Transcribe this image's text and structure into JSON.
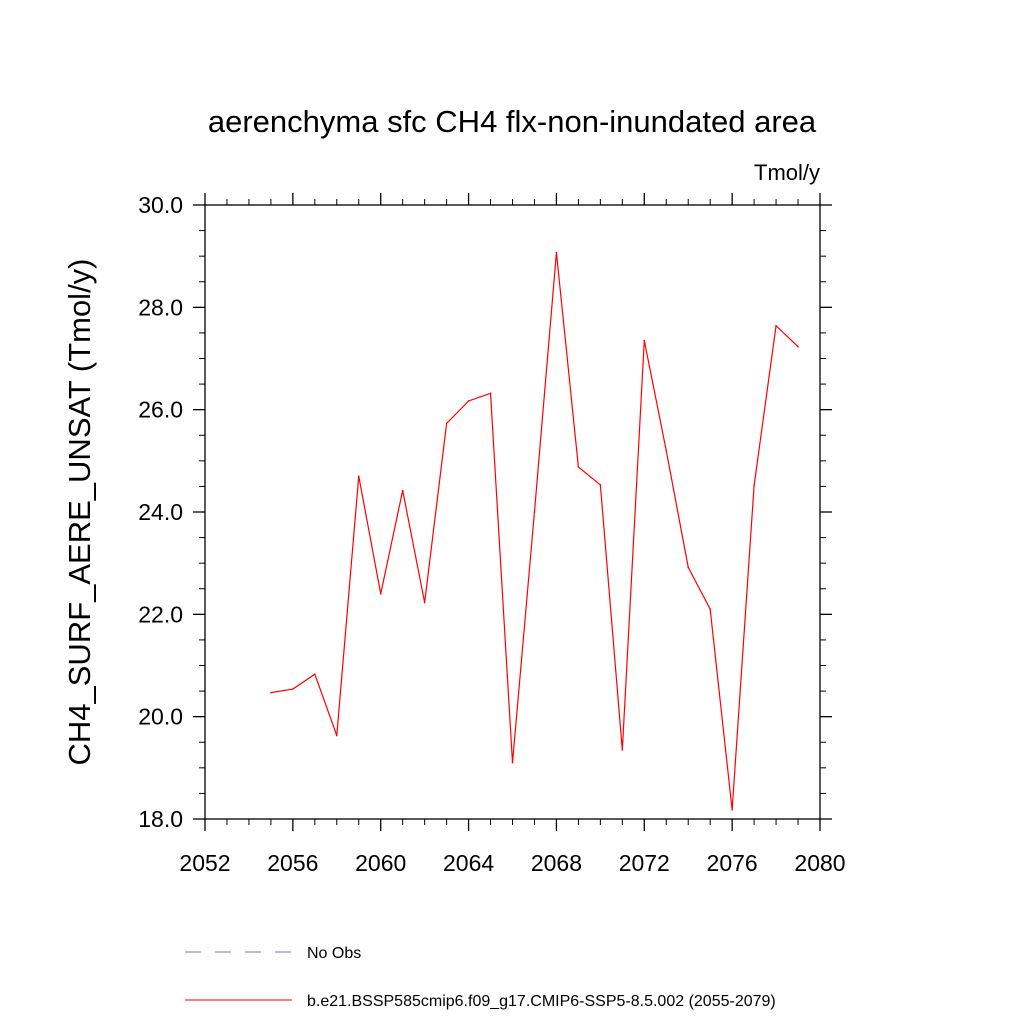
{
  "chart_data": {
    "type": "line",
    "title": "aerenchyma sfc CH4 flx-non-inundated area",
    "units_label": "Tmol/y",
    "ylabel": "CH4_SURF_AERE_UNSAT  (Tmol/y)",
    "xlabel": "",
    "xlim": [
      2052,
      2080
    ],
    "ylim": [
      18.0,
      30.0
    ],
    "x_ticks": [
      2052,
      2056,
      2060,
      2064,
      2068,
      2072,
      2076,
      2080
    ],
    "x_tick_labels": [
      "2052",
      "2056",
      "2060",
      "2064",
      "2068",
      "2072",
      "2076",
      "2080"
    ],
    "y_ticks": [
      18.0,
      20.0,
      22.0,
      24.0,
      26.0,
      28.0,
      30.0
    ],
    "y_tick_labels": [
      "18.0",
      "20.0",
      "22.0",
      "24.0",
      "26.0",
      "28.0",
      "30.0"
    ],
    "grid": false,
    "legend_position": "bottom",
    "series": [
      {
        "name": "No Obs",
        "color": "#7b6fd6",
        "dash": "dashed",
        "x": [],
        "values": []
      },
      {
        "name": "b.e21.BSSP585cmip6.f09_g17.CMIP6-SSP5-8.5.002 (2055-2079)",
        "color": "#ff0000",
        "dash": "solid",
        "x": [
          2055,
          2056,
          2057,
          2058,
          2059,
          2060,
          2061,
          2062,
          2063,
          2064,
          2065,
          2066,
          2067,
          2068,
          2069,
          2070,
          2071,
          2072,
          2073,
          2074,
          2075,
          2076,
          2077,
          2078,
          2079
        ],
        "values": [
          20.47,
          20.54,
          20.83,
          19.63,
          24.7,
          22.4,
          24.42,
          22.23,
          25.73,
          26.17,
          26.32,
          19.1,
          24.0,
          29.07,
          24.88,
          24.53,
          19.35,
          27.35,
          25.2,
          22.92,
          22.1,
          18.18,
          24.52,
          27.64,
          27.23
        ]
      }
    ]
  }
}
